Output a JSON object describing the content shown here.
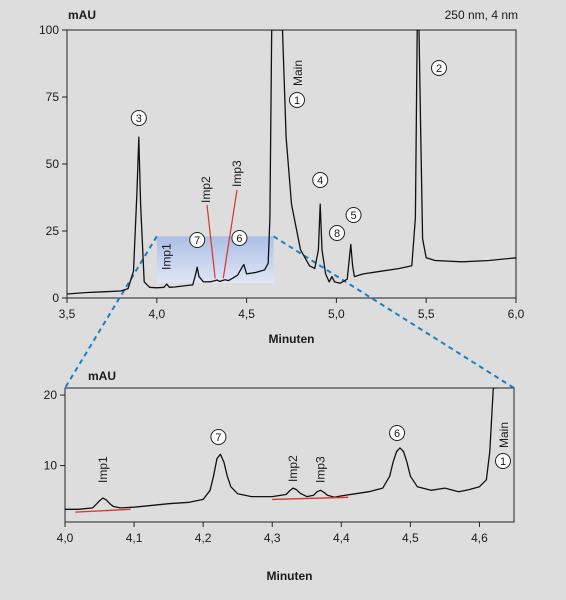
{
  "chart_data": [
    {
      "type": "line",
      "ylabel": "mAU",
      "xlabel": "Minuten",
      "annotation": "250 nm, 4 nm",
      "xlim": [
        3.5,
        6.0
      ],
      "ylim": [
        0,
        100
      ],
      "x_ticks": [
        3.5,
        4.0,
        4.5,
        5.0,
        5.5,
        6.0
      ],
      "x_tick_labels": [
        "3,5",
        "4,0",
        "4,5",
        "5,0",
        "5,5",
        "6,0"
      ],
      "y_ticks": [
        0,
        25,
        50,
        75,
        100
      ],
      "y_tick_labels": [
        "0",
        "25",
        "50",
        "75",
        "100"
      ],
      "zoom_region": {
        "x": [
          4.0,
          4.65
        ],
        "y": [
          0,
          26
        ]
      },
      "series": [
        {
          "x": [
            3.5,
            3.6,
            3.7,
            3.8,
            3.84,
            3.87,
            3.89,
            3.9,
            3.91,
            3.93,
            3.96,
            4.0,
            4.04,
            4.055,
            4.07,
            4.1,
            4.15,
            4.2,
            4.215,
            4.225,
            4.235,
            4.26,
            4.3,
            4.325,
            4.335,
            4.35,
            4.37,
            4.38,
            4.4,
            4.45,
            4.475,
            4.485,
            4.5,
            4.55,
            4.6,
            4.62,
            4.63,
            4.64,
            4.66,
            4.68,
            4.7,
            4.72,
            4.75,
            4.8,
            4.85,
            4.88,
            4.9,
            4.91,
            4.92,
            4.94,
            4.96,
            4.975,
            4.99,
            5.02,
            5.06,
            5.08,
            5.09,
            5.1,
            5.15,
            5.25,
            5.35,
            5.42,
            5.44,
            5.45,
            5.46,
            5.47,
            5.48,
            5.5,
            5.55,
            5.7,
            5.85,
            6.0
          ],
          "y": [
            1.5,
            2.0,
            2.3,
            2.6,
            3.5,
            10,
            40,
            60,
            35,
            6,
            4,
            3.8,
            4.0,
            5.2,
            4.0,
            4.1,
            4.5,
            4.9,
            8.5,
            11.5,
            8,
            6.0,
            6.1,
            6.5,
            6.7,
            6.2,
            6.6,
            6.8,
            6.5,
            8.5,
            11.5,
            12.5,
            9,
            9.5,
            10.5,
            13,
            30,
            100,
            100,
            100,
            100,
            60,
            35,
            18,
            12,
            11,
            18,
            35,
            18,
            9,
            6,
            8,
            6,
            5.5,
            7,
            20,
            12,
            8,
            9,
            10,
            11,
            12,
            30,
            100,
            100,
            60,
            22,
            15,
            14,
            13.5,
            14,
            15
          ]
        }
      ],
      "peak_labels": [
        {
          "id": "3",
          "x": 3.9
        },
        {
          "id": "Imp1",
          "x": 4.055
        },
        {
          "id": "7",
          "x": 4.225
        },
        {
          "id": "Imp2",
          "x": 4.33
        },
        {
          "id": "Imp3",
          "x": 4.37
        },
        {
          "id": "6",
          "x": 4.485
        },
        {
          "id": "1",
          "label": "Main",
          "x": 4.63
        },
        {
          "id": "4",
          "x": 4.91
        },
        {
          "id": "8",
          "x": 4.975
        },
        {
          "id": "5",
          "x": 5.09
        },
        {
          "id": "2",
          "x": 5.45
        }
      ]
    },
    {
      "type": "line",
      "ylabel": "mAU",
      "xlabel": "Minuten",
      "xlim": [
        4.0,
        4.65
      ],
      "ylim": [
        2,
        21
      ],
      "x_ticks": [
        4.0,
        4.1,
        4.2,
        4.3,
        4.4,
        4.5,
        4.6
      ],
      "x_tick_labels": [
        "4,0",
        "4,1",
        "4,2",
        "4,3",
        "4,4",
        "4,5",
        "4,6"
      ],
      "y_ticks": [
        10,
        20
      ],
      "y_tick_labels": [
        "10",
        "20"
      ],
      "series": [
        {
          "x": [
            4.0,
            4.02,
            4.04,
            4.045,
            4.05,
            4.055,
            4.06,
            4.065,
            4.07,
            4.08,
            4.1,
            4.12,
            4.15,
            4.18,
            4.2,
            4.21,
            4.215,
            4.22,
            4.225,
            4.23,
            4.235,
            4.24,
            4.25,
            4.27,
            4.3,
            4.32,
            4.325,
            4.33,
            4.335,
            4.34,
            4.35,
            4.36,
            4.365,
            4.37,
            4.375,
            4.38,
            4.39,
            4.4,
            4.42,
            4.44,
            4.46,
            4.47,
            4.475,
            4.48,
            4.485,
            4.49,
            4.495,
            4.5,
            4.51,
            4.53,
            4.55,
            4.57,
            4.585,
            4.6,
            4.61,
            4.615,
            4.62,
            4.625
          ],
          "y": [
            3.8,
            3.8,
            4.0,
            4.5,
            5.0,
            5.4,
            5.1,
            4.6,
            4.2,
            4.0,
            4.1,
            4.3,
            4.6,
            4.8,
            5.2,
            6.5,
            8.5,
            11.0,
            11.6,
            10.5,
            8.5,
            7.0,
            6.0,
            5.6,
            5.6,
            5.9,
            6.4,
            6.8,
            6.6,
            6.1,
            5.6,
            5.8,
            6.3,
            6.5,
            6.2,
            5.8,
            5.5,
            5.7,
            6.0,
            6.3,
            6.8,
            8.5,
            10.5,
            12.0,
            12.5,
            12.0,
            10.5,
            8.5,
            7.0,
            6.5,
            6.8,
            6.3,
            6.6,
            7.0,
            8.0,
            12.0,
            21.0,
            21.0
          ]
        }
      ],
      "integration_baselines": [
        {
          "x": [
            4.015,
            4.095
          ],
          "y": [
            3.4,
            3.8
          ]
        },
        {
          "x": [
            4.3,
            4.41
          ],
          "y": [
            5.2,
            5.5
          ]
        }
      ],
      "peak_labels": [
        {
          "id": "Imp1",
          "x": 4.055
        },
        {
          "id": "7",
          "x": 4.225
        },
        {
          "id": "Imp2",
          "x": 4.33
        },
        {
          "id": "Imp3",
          "x": 4.37
        },
        {
          "id": "6",
          "x": 4.485
        },
        {
          "id": "1",
          "label": "Main",
          "x": 4.625
        }
      ]
    }
  ],
  "colors": {
    "background": "#dddddd",
    "plot_area": "#ffffff",
    "trace": "#111111",
    "zoom_box": "#a9bde6",
    "zoom_lines": "#1b7fc4",
    "integration_baseline": "#d9352b"
  }
}
